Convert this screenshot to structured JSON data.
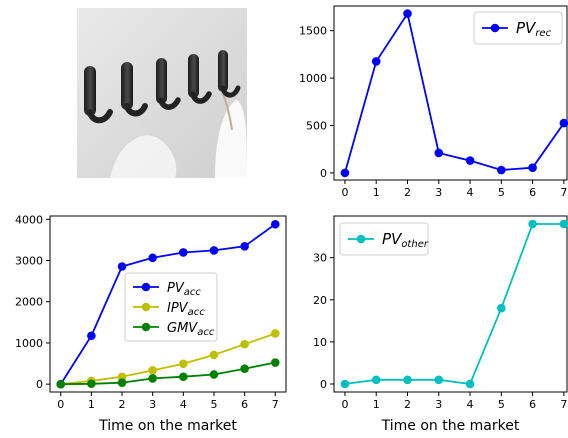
{
  "photo": {
    "description_icon": "wall-hooks-photo-icon"
  },
  "chart_data": [
    {
      "id": "rec",
      "type": "line",
      "x": [
        0,
        1,
        2,
        3,
        4,
        5,
        6,
        7
      ],
      "xticks": [
        0,
        1,
        2,
        3,
        4,
        5,
        6,
        7
      ],
      "yticks": [
        0,
        500,
        1000,
        1500
      ],
      "xlim": [
        -0.35,
        7.1
      ],
      "ylim": [
        -75,
        1760
      ],
      "xlabel": "",
      "ylabel": "",
      "legend": "top-right",
      "series": [
        {
          "name_main": "PV",
          "name_sub": "rec",
          "color": "#0000ff",
          "values": [
            0,
            1175,
            1680,
            210,
            130,
            30,
            55,
            525
          ]
        }
      ]
    },
    {
      "id": "acc",
      "type": "line",
      "x": [
        0,
        1,
        2,
        3,
        4,
        5,
        6,
        7
      ],
      "xticks": [
        0,
        1,
        2,
        3,
        4,
        5,
        6,
        7
      ],
      "yticks": [
        0,
        1000,
        2000,
        3000,
        4000
      ],
      "xlim": [
        -0.35,
        7.35
      ],
      "ylim": [
        -190,
        4080
      ],
      "xlabel": "Time on the market",
      "ylabel": "",
      "legend": "center-right",
      "series": [
        {
          "name_main": "PV",
          "name_sub": "acc",
          "color": "#0000ff",
          "values": [
            0,
            1175,
            2855,
            3065,
            3195,
            3245,
            3345,
            3880
          ]
        },
        {
          "name_main": "IPV",
          "name_sub": "acc",
          "color": "#bfbf00",
          "values": [
            0,
            80,
            180,
            335,
            495,
            710,
            970,
            1230
          ]
        },
        {
          "name_main": "GMV",
          "name_sub": "acc",
          "color": "#008000",
          "values": [
            0,
            10,
            35,
            140,
            180,
            235,
            375,
            525
          ]
        }
      ]
    },
    {
      "id": "other",
      "type": "line",
      "x": [
        0,
        1,
        2,
        3,
        4,
        5,
        6,
        7
      ],
      "xticks": [
        0,
        1,
        2,
        3,
        4,
        5,
        6,
        7
      ],
      "yticks": [
        0,
        10,
        20,
        30
      ],
      "xlim": [
        -0.35,
        7.1
      ],
      "ylim": [
        -1.9,
        39.9
      ],
      "xlabel": "Time on the market",
      "ylabel": "",
      "legend": "top-left",
      "series": [
        {
          "name_main": "PV",
          "name_sub": "other",
          "color": "#00bfbf",
          "values": [
            0,
            1,
            1,
            1,
            0,
            18,
            38,
            38
          ]
        }
      ]
    }
  ]
}
